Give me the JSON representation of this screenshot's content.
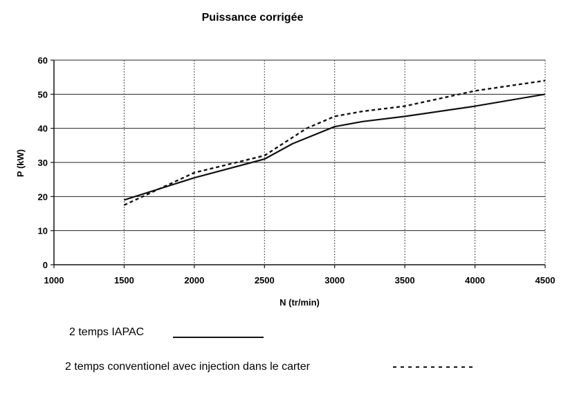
{
  "chart_data": {
    "type": "line",
    "title": "Puissance corrigée",
    "xlabel": "N (tr/min)",
    "ylabel": "P (kW)",
    "xlim": [
      1000,
      4500
    ],
    "ylim": [
      0,
      60
    ],
    "x_ticks": [
      1000,
      1500,
      2000,
      2500,
      3000,
      3500,
      4000,
      4500
    ],
    "y_ticks": [
      0,
      10,
      20,
      30,
      40,
      50,
      60
    ],
    "grid": true,
    "legend_position": "bottom",
    "series": [
      {
        "name": "2 temps IAPAC",
        "style": "solid",
        "color": "#111111",
        "x": [
          1500,
          2000,
          2500,
          2700,
          3000,
          3200,
          3500,
          4000,
          4500
        ],
        "y": [
          19,
          25.5,
          31,
          35.5,
          40.5,
          42,
          43.5,
          46.5,
          50
        ]
      },
      {
        "name": "2 temps conventionel avec injection dans le carter",
        "style": "dashed",
        "color": "#111111",
        "x": [
          1500,
          2000,
          2500,
          2800,
          3000,
          3200,
          3500,
          4000,
          4500
        ],
        "y": [
          17.5,
          27,
          32,
          40,
          43.5,
          45,
          46.5,
          51,
          54
        ]
      }
    ]
  }
}
